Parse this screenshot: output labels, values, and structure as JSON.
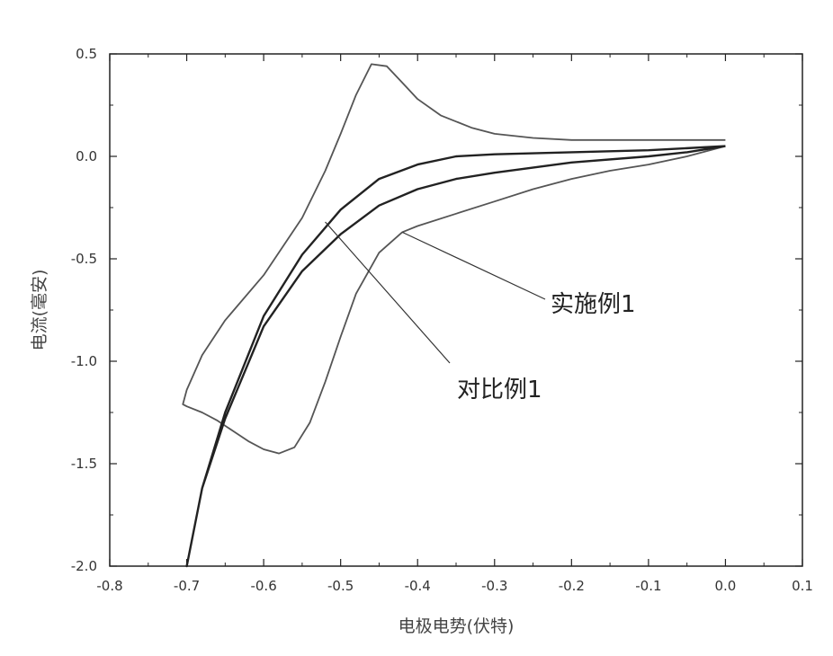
{
  "chart_data": {
    "type": "line",
    "xlabel": "电极电势(伏特)",
    "ylabel": "电流(毫安)",
    "xlim": [
      -0.8,
      0.1
    ],
    "ylim": [
      -2.0,
      0.5
    ],
    "x_ticks": [
      "-0.8",
      "-0.7",
      "-0.6",
      "-0.5",
      "-0.4",
      "-0.3",
      "-0.2",
      "-0.1",
      "0.0",
      "0.1"
    ],
    "y_ticks": [
      "0.5",
      "0.0",
      "-0.5",
      "-1.0",
      "-1.5",
      "-2.0"
    ],
    "grid": false,
    "series": [
      {
        "name": "实施例1",
        "color": "#555555",
        "x": [
          0.0,
          -0.05,
          -0.1,
          -0.15,
          -0.2,
          -0.25,
          -0.3,
          -0.35,
          -0.4,
          -0.42,
          -0.45,
          -0.48,
          -0.5,
          -0.52,
          -0.54,
          -0.56,
          -0.58,
          -0.6,
          -0.62,
          -0.64,
          -0.66,
          -0.68,
          -0.7,
          -0.705,
          -0.7,
          -0.68,
          -0.65,
          -0.6,
          -0.55,
          -0.52,
          -0.5,
          -0.48,
          -0.46,
          -0.44,
          -0.42,
          -0.4,
          -0.37,
          -0.33,
          -0.3,
          -0.25,
          -0.2,
          -0.15,
          -0.1,
          -0.05,
          0.0
        ],
        "y": [
          0.05,
          0.0,
          -0.04,
          -0.07,
          -0.11,
          -0.16,
          -0.22,
          -0.28,
          -0.34,
          -0.37,
          -0.47,
          -0.67,
          -0.88,
          -1.1,
          -1.3,
          -1.42,
          -1.45,
          -1.43,
          -1.39,
          -1.34,
          -1.29,
          -1.25,
          -1.22,
          -1.21,
          -1.14,
          -0.97,
          -0.8,
          -0.58,
          -0.3,
          -0.07,
          0.11,
          0.3,
          0.45,
          0.44,
          0.36,
          0.28,
          0.2,
          0.14,
          0.11,
          0.09,
          0.08,
          0.08,
          0.08,
          0.08,
          0.08
        ]
      },
      {
        "name": "对比例1",
        "color": "#222222",
        "x": [
          0.0,
          -0.05,
          -0.1,
          -0.2,
          -0.3,
          -0.35,
          -0.4,
          -0.45,
          -0.5,
          -0.55,
          -0.6,
          -0.65,
          -0.68,
          -0.7,
          -0.7,
          -0.68,
          -0.65,
          -0.6,
          -0.55,
          -0.5,
          -0.45,
          -0.4,
          -0.35,
          -0.3,
          -0.2,
          -0.1,
          0.0
        ],
        "y": [
          0.05,
          0.02,
          0.0,
          -0.03,
          -0.08,
          -0.11,
          -0.16,
          -0.24,
          -0.38,
          -0.56,
          -0.83,
          -1.28,
          -1.62,
          -2.0,
          -2.0,
          -1.62,
          -1.25,
          -0.78,
          -0.48,
          -0.26,
          -0.11,
          -0.04,
          0.0,
          0.01,
          0.02,
          0.03,
          0.05
        ]
      }
    ],
    "annotations": [
      {
        "text": "实施例1",
        "point": [
          -0.42,
          -0.37
        ]
      },
      {
        "text": "对比例1",
        "point": [
          -0.52,
          -0.32
        ]
      }
    ]
  }
}
